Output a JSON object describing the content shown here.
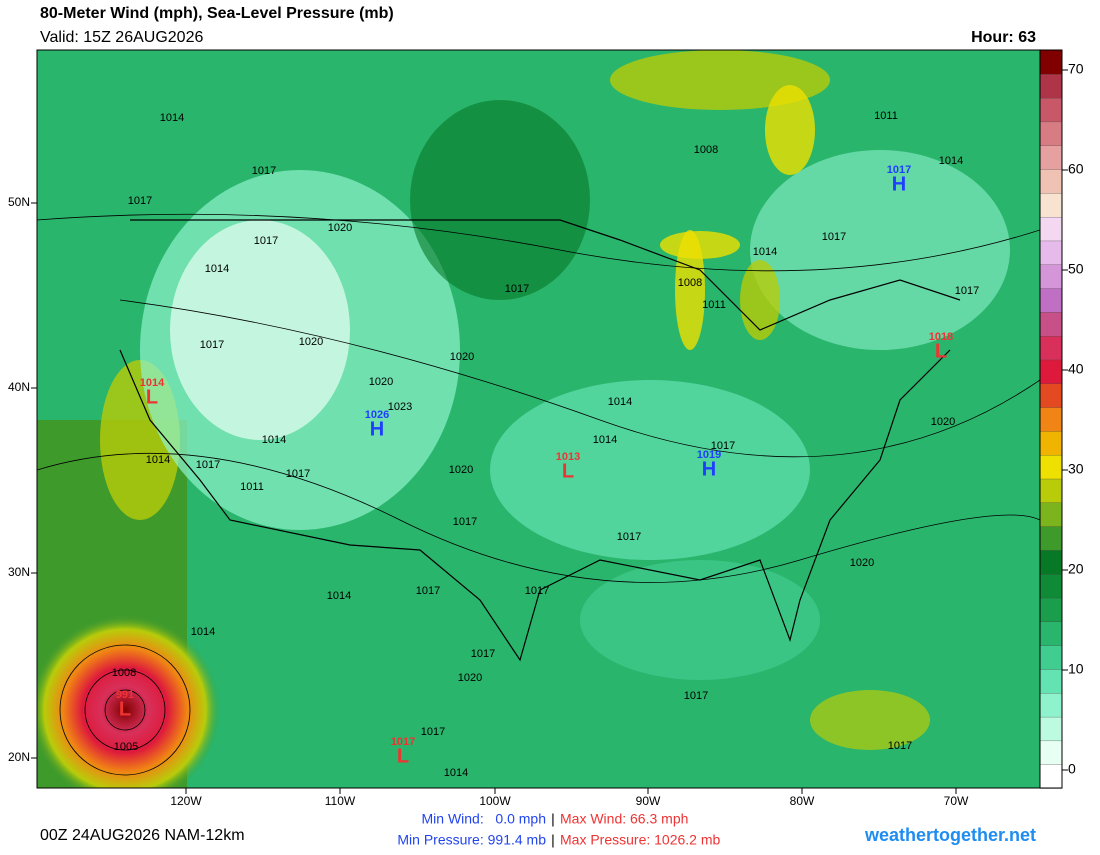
{
  "header": {
    "title": "80-Meter Wind (mph), Sea-Level Pressure (mb)",
    "valid": "Valid: 15Z 26AUG2026",
    "hour": "Hour: 63"
  },
  "map": {
    "lat_labels": [
      "50N",
      "40N",
      "30N",
      "20N"
    ],
    "lon_labels": [
      "120W",
      "110W",
      "100W",
      "90W",
      "80W",
      "70W"
    ],
    "isobar_labels": [
      1014,
      1017,
      1017,
      1017,
      1020,
      1014,
      1017,
      1017,
      1020,
      1020,
      1020,
      1023,
      1014,
      1014,
      1017,
      1017,
      1011,
      1020,
      1017,
      1014,
      1014,
      1017,
      1017,
      1014,
      1017,
      1017,
      1014,
      1017,
      1020,
      1017,
      1014,
      1008,
      1005,
      1017,
      1017,
      1020,
      1020,
      1017,
      1017,
      1014,
      1011,
      1014,
      1008,
      1008,
      1011
    ],
    "centers": [
      {
        "letter": "H",
        "pressure": 1026,
        "color": "#1f3fff"
      },
      {
        "letter": "L",
        "pressure": 1014,
        "color": "#ee3333"
      },
      {
        "letter": "L",
        "pressure": 1013,
        "color": "#ee3333"
      },
      {
        "letter": "H",
        "pressure": 1019,
        "color": "#1f3fff"
      },
      {
        "letter": "H",
        "pressure": 1017,
        "color": "#1f3fff"
      },
      {
        "letter": "L",
        "pressure": 1018,
        "color": "#ee3333"
      },
      {
        "letter": "L",
        "pressure": 1017,
        "color": "#ee3333"
      },
      {
        "letter": "L",
        "pressure": 991,
        "color": "#ee3333"
      }
    ]
  },
  "colorbar": {
    "lim": [
      -1.8,
      72
    ],
    "ticks": [
      0,
      10,
      20,
      30,
      40,
      50,
      60,
      70
    ],
    "colors": [
      "#ffffff",
      "#e8fff4",
      "#bdfbe0",
      "#8ef2cc",
      "#63e2b2",
      "#41cc90",
      "#2ab56c",
      "#1a9e4c",
      "#0f8a36",
      "#077826",
      "#3f9a2c",
      "#7cb41e",
      "#b8cc0a",
      "#eee000",
      "#f0b400",
      "#f08414",
      "#e44a22",
      "#de1a3c",
      "#d8305a",
      "#c85088",
      "#c070c4",
      "#d496d8",
      "#e6baea",
      "#f4d8f2",
      "#f8e2d0",
      "#f0c2b4",
      "#e6a0a0",
      "#d87c84",
      "#c85868",
      "#ae3448",
      "#800000"
    ]
  },
  "footer": {
    "run": "00Z 24AUG2026 NAM-12km",
    "min_wind": "Min Wind:   0.0 mph",
    "max_wind": "Max Wind: 66.3 mph",
    "min_pressure": "Min Pressure: 991.4 mb",
    "max_pressure": "Max Pressure: 1026.2 mb",
    "site": "weathertogether.net"
  }
}
